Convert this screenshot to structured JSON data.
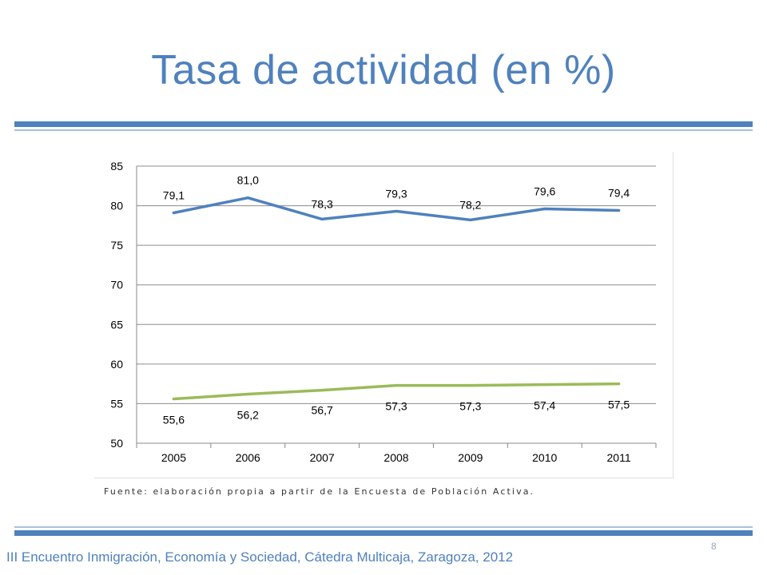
{
  "slide": {
    "title": "Tasa de actividad (en %)",
    "source": "Fuente: elaboración propia a partir de la Encuesta de Población Activa.",
    "page_number": "8",
    "footer": "III Encuentro Inmigración, Economía y Sociedad, Cátedra Multicaja, Zaragoza, 2012",
    "accent_color": "#4f81bd"
  },
  "chart_data": {
    "type": "line",
    "x": [
      "2005",
      "2006",
      "2007",
      "2008",
      "2009",
      "2010",
      "2011"
    ],
    "ylim": [
      50,
      85
    ],
    "yticks": [
      85,
      80,
      75,
      70,
      65,
      60,
      55,
      50
    ],
    "grid": true,
    "legend": "none",
    "series": [
      {
        "color": "#4f81bd",
        "values": [
          79.1,
          81.0,
          78.3,
          79.3,
          78.2,
          79.6,
          79.4
        ],
        "labels": [
          "79,1",
          "81,0",
          "78,3",
          "79,3",
          "78,2",
          "79,6",
          "79,4"
        ]
      },
      {
        "color": "#9bbb59",
        "values": [
          55.6,
          56.2,
          56.7,
          57.3,
          57.3,
          57.4,
          57.5
        ],
        "labels": [
          "55,6",
          "56,2",
          "56,7",
          "57,3",
          "57,3",
          "57,4",
          "57,5"
        ]
      }
    ]
  }
}
